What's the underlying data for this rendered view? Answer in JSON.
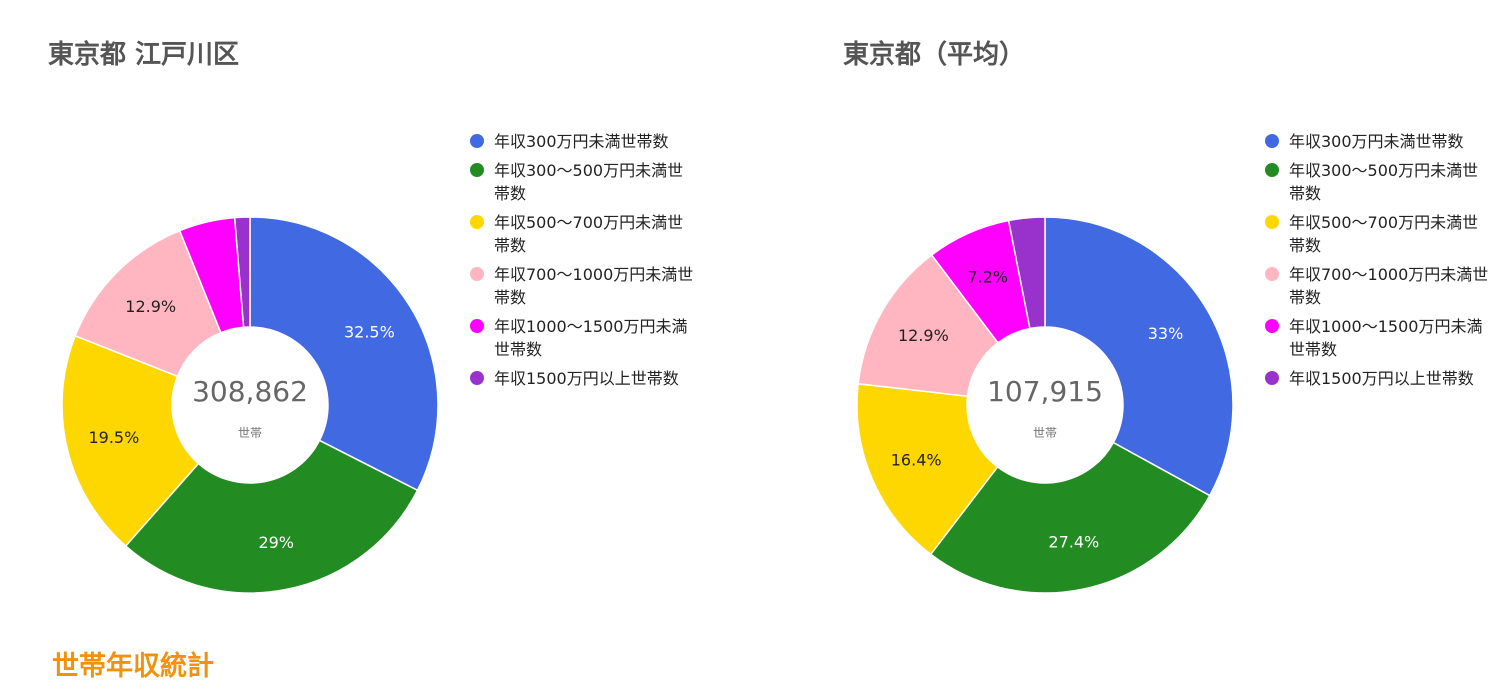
{
  "chart_data": [
    {
      "type": "donut",
      "title": "東京都 江戸川区",
      "center_value": "308,862",
      "center_unit": "世帯",
      "categories": [
        "年収300万円未満世帯数",
        "年収300～500万円未満世帯数",
        "年収500～700万円未満世帯数",
        "年収700～1000万円未満世帯数",
        "年収1000～1500万円未満世帯数",
        "年収1500万円以上世帯数"
      ],
      "values": [
        32.5,
        29.0,
        19.5,
        12.9,
        4.8,
        1.3
      ],
      "labels": [
        "32.5%",
        "29%",
        "19.5%",
        "12.9%",
        "",
        ""
      ],
      "legend_position": "right"
    },
    {
      "type": "donut",
      "title": "東京都（平均）",
      "center_value": "107,915",
      "center_unit": "世帯",
      "categories": [
        "年収300万円未満世帯数",
        "年収300～500万円未満世帯数",
        "年収500～700万円未満世帯数",
        "年収700～1000万円未満世帯数",
        "年収1000～1500万円未満世帯数",
        "年収1500万円以上世帯数"
      ],
      "values": [
        33.0,
        27.4,
        16.4,
        12.9,
        7.2,
        3.1
      ],
      "labels": [
        "33%",
        "27.4%",
        "16.4%",
        "12.9%",
        "7.2%",
        ""
      ],
      "legend_position": "right"
    }
  ],
  "colors": [
    "#4169e1",
    "#228b22",
    "#ffd700",
    "#ffb6c1",
    "#ff00ff",
    "#9932cc"
  ],
  "label_colors": [
    "#ffffff",
    "#ffffff",
    "#222222",
    "#222222",
    "#222222",
    "#222222"
  ],
  "section_label": "世帯年収統計"
}
